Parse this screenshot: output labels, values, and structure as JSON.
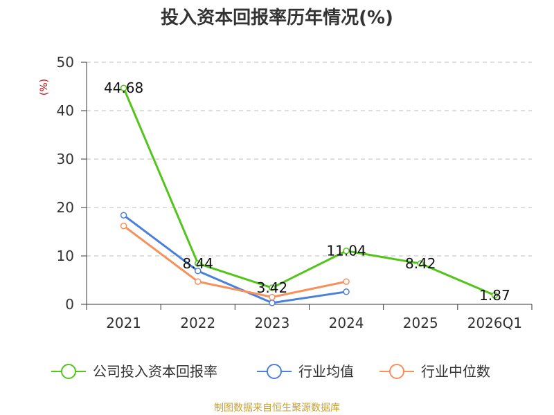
{
  "chart_data": {
    "type": "line",
    "title": "投入资本回报率历年情况(%)",
    "ylabel": "(%)",
    "categories": [
      "2021",
      "2022",
      "2023",
      "2024",
      "2025",
      "2026Q1"
    ],
    "ylim": [
      0,
      50
    ],
    "yticks": [
      0,
      10,
      20,
      30,
      40,
      50
    ],
    "grid": true,
    "legend_position": "bottom",
    "series": [
      {
        "name": "公司投入资本回报率",
        "color": "#52c41a",
        "values": [
          44.68,
          8.44,
          3.42,
          11.04,
          8.42,
          1.87
        ],
        "data_labels": [
          "44.68",
          "8.44",
          "3.42",
          "11.04",
          "8.42",
          "1.87"
        ]
      },
      {
        "name": "行业均值",
        "color": "#4a7fdc",
        "values": [
          18.4,
          6.9,
          0.3,
          2.6,
          null,
          null
        ]
      },
      {
        "name": "行业中位数",
        "color": "#f7905a",
        "values": [
          16.2,
          4.7,
          1.5,
          4.7,
          null,
          null
        ]
      }
    ]
  },
  "source": "制图数据来自恒生聚源数据库"
}
